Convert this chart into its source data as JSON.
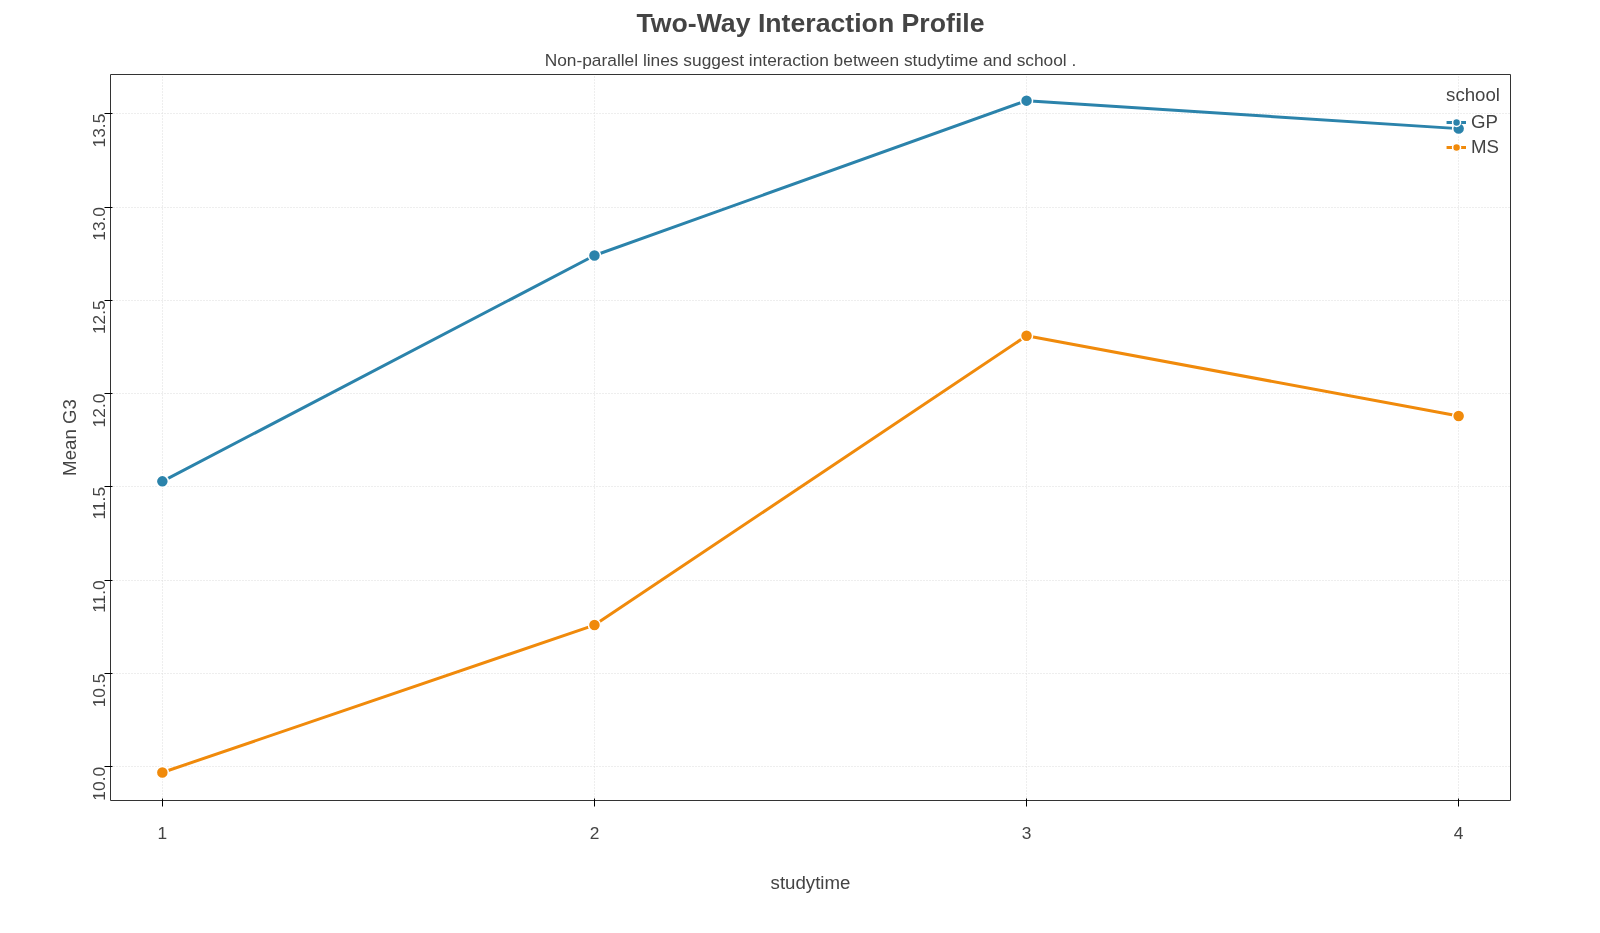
{
  "chart_data": {
    "type": "line",
    "title": "Two-Way Interaction Profile",
    "subtitle": "Non-parallel lines suggest interaction between studytime and school .",
    "xlabel": "studytime",
    "ylabel": "Mean G3",
    "legend_title": "school",
    "x": [
      1,
      2,
      3,
      4
    ],
    "series": [
      {
        "name": "GP",
        "color": "#2b83ab",
        "values": [
          11.53,
          12.74,
          13.57,
          13.42
        ]
      },
      {
        "name": "MS",
        "color": "#f08a0b",
        "values": [
          9.97,
          10.76,
          12.31,
          11.88
        ]
      }
    ],
    "xlim": [
      0.88,
      4.12
    ],
    "ylim": [
      9.82,
      13.71
    ],
    "xticks": [
      1,
      2,
      3,
      4
    ],
    "yticks": [
      {
        "value": 10,
        "label": "10.0"
      },
      10.5,
      {
        "value": 11,
        "label": "11.0"
      },
      11.5,
      {
        "value": 12,
        "label": "12.0"
      },
      12.5,
      {
        "value": 13,
        "label": "13.0"
      },
      13.5
    ],
    "grid": true,
    "legend": "top right",
    "marker": "circle",
    "line_style": "solid"
  }
}
